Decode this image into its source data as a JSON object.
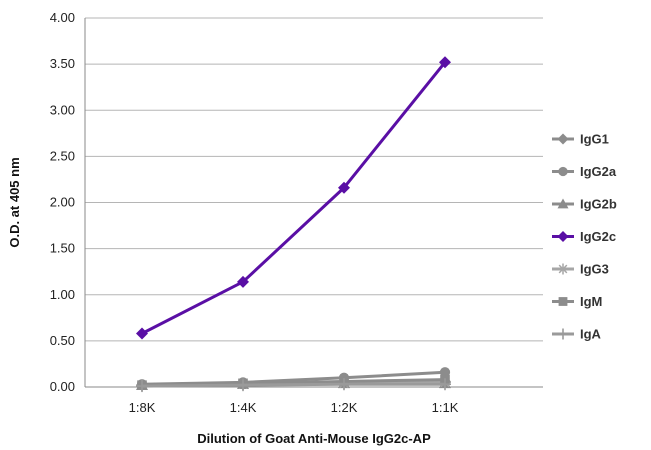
{
  "chart_data": {
    "type": "line",
    "title": "",
    "xlabel": "Dilution of Goat Anti-Mouse IgG2c-AP",
    "ylabel": "O.D. at 405 nm",
    "categories": [
      "1:8K",
      "1:4K",
      "1:2K",
      "1:1K"
    ],
    "ylim": [
      0,
      4
    ],
    "yticks": [
      "0.00",
      "0.50",
      "1.00",
      "1.50",
      "2.00",
      "2.50",
      "3.00",
      "3.50",
      "4.00"
    ],
    "grid": true,
    "legend_position": "right",
    "series": [
      {
        "name": "IgG1",
        "values": [
          0.02,
          0.03,
          0.05,
          0.06
        ],
        "color": "#8c8c8c",
        "marker": "diamond"
      },
      {
        "name": "IgG2a",
        "values": [
          0.03,
          0.05,
          0.1,
          0.16
        ],
        "color": "#8c8c8c",
        "marker": "circle"
      },
      {
        "name": "IgG2b",
        "values": [
          0.02,
          0.03,
          0.04,
          0.04
        ],
        "color": "#8c8c8c",
        "marker": "triangle"
      },
      {
        "name": "IgG2c",
        "values": [
          0.58,
          1.14,
          2.16,
          3.52
        ],
        "color": "#5a0fa5",
        "marker": "diamond"
      },
      {
        "name": "IgG3",
        "values": [
          0.02,
          0.03,
          0.04,
          0.05
        ],
        "color": "#a6a6a6",
        "marker": "star"
      },
      {
        "name": "IgM",
        "values": [
          0.02,
          0.04,
          0.06,
          0.08
        ],
        "color": "#8c8c8c",
        "marker": "square"
      },
      {
        "name": "IgA",
        "values": [
          0.01,
          0.02,
          0.03,
          0.03
        ],
        "color": "#9a9a9a",
        "marker": "plus"
      }
    ]
  }
}
